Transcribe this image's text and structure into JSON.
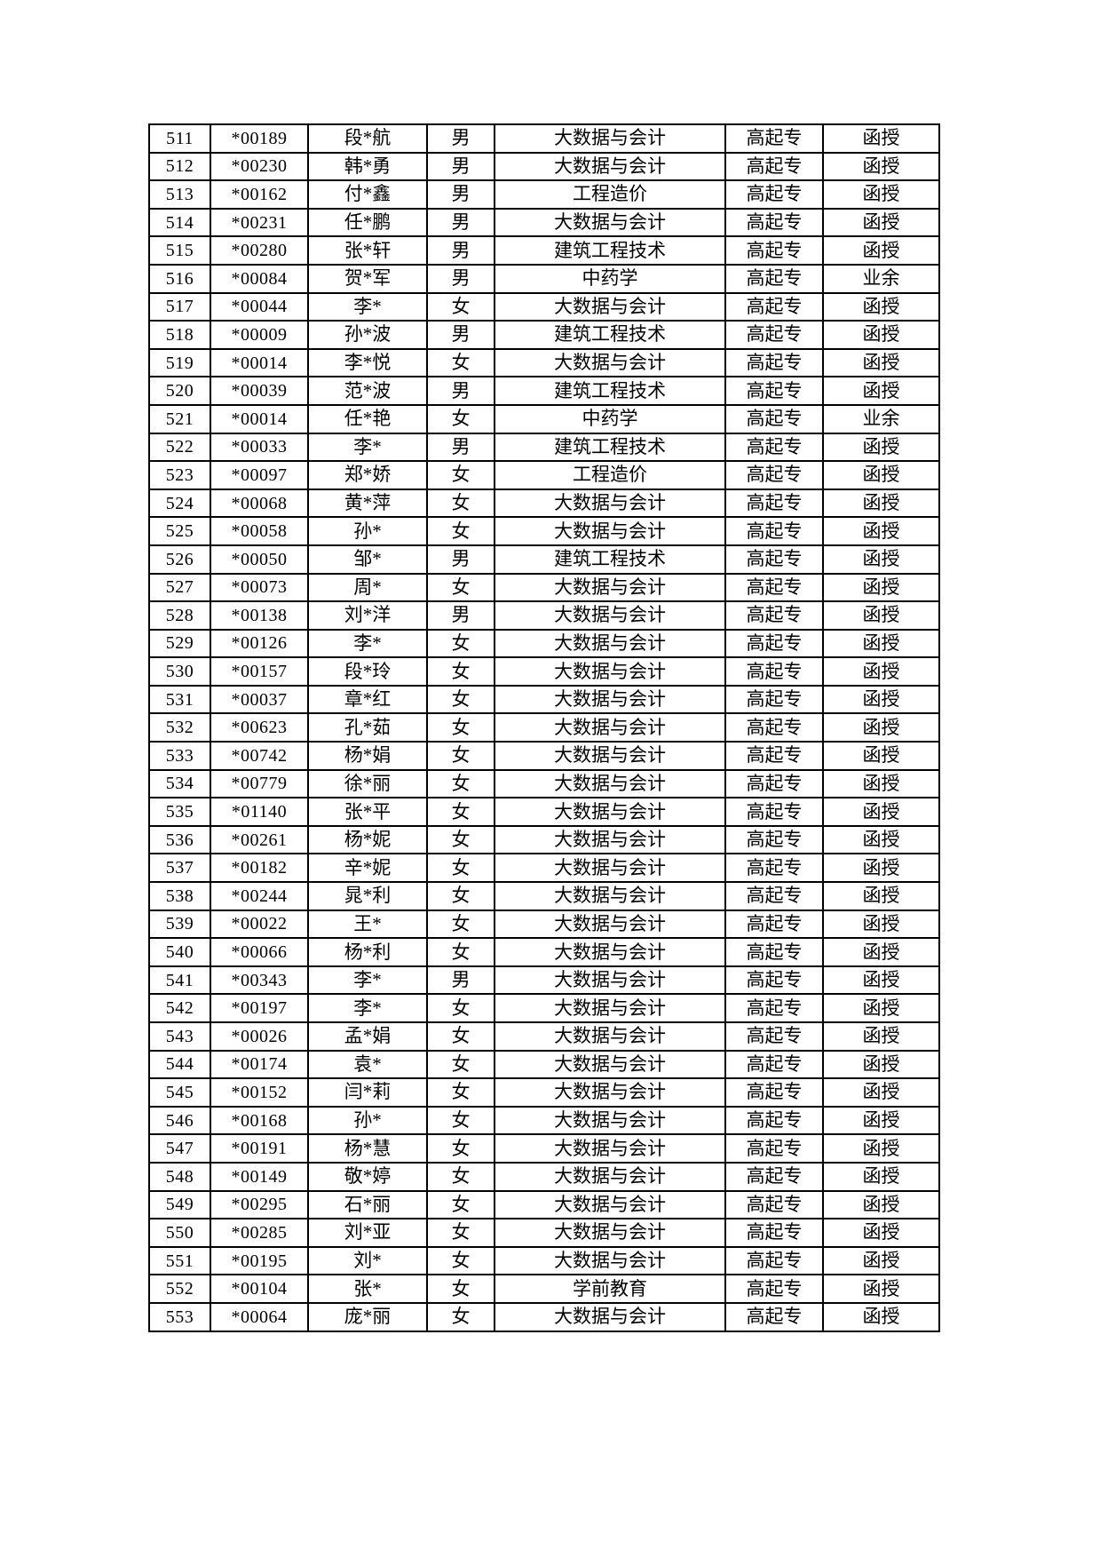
{
  "ink_color": "#000000",
  "paper_color": "#ffffff",
  "levels": {
    "gaoqizhuan": "高起专"
  },
  "forms": {
    "hanshou": "函授",
    "yeyu": "业余"
  },
  "table": {
    "rows": [
      [
        "511",
        "*00189",
        "段*航",
        "男",
        "大数据与会计",
        "高起专",
        "函授"
      ],
      [
        "512",
        "*00230",
        "韩*勇",
        "男",
        "大数据与会计",
        "高起专",
        "函授"
      ],
      [
        "513",
        "*00162",
        "付*鑫",
        "男",
        "工程造价",
        "高起专",
        "函授"
      ],
      [
        "514",
        "*00231",
        "任*鹏",
        "男",
        "大数据与会计",
        "高起专",
        "函授"
      ],
      [
        "515",
        "*00280",
        "张*轩",
        "男",
        "建筑工程技术",
        "高起专",
        "函授"
      ],
      [
        "516",
        "*00084",
        "贺*军",
        "男",
        "中药学",
        "高起专",
        "业余"
      ],
      [
        "517",
        "*00044",
        "李*",
        "女",
        "大数据与会计",
        "高起专",
        "函授"
      ],
      [
        "518",
        "*00009",
        "孙*波",
        "男",
        "建筑工程技术",
        "高起专",
        "函授"
      ],
      [
        "519",
        "*00014",
        "李*悦",
        "女",
        "大数据与会计",
        "高起专",
        "函授"
      ],
      [
        "520",
        "*00039",
        "范*波",
        "男",
        "建筑工程技术",
        "高起专",
        "函授"
      ],
      [
        "521",
        "*00014",
        "任*艳",
        "女",
        "中药学",
        "高起专",
        "业余"
      ],
      [
        "522",
        "*00033",
        "李*",
        "男",
        "建筑工程技术",
        "高起专",
        "函授"
      ],
      [
        "523",
        "*00097",
        "郑*娇",
        "女",
        "工程造价",
        "高起专",
        "函授"
      ],
      [
        "524",
        "*00068",
        "黄*萍",
        "女",
        "大数据与会计",
        "高起专",
        "函授"
      ],
      [
        "525",
        "*00058",
        "孙*",
        "女",
        "大数据与会计",
        "高起专",
        "函授"
      ],
      [
        "526",
        "*00050",
        "邹*",
        "男",
        "建筑工程技术",
        "高起专",
        "函授"
      ],
      [
        "527",
        "*00073",
        "周*",
        "女",
        "大数据与会计",
        "高起专",
        "函授"
      ],
      [
        "528",
        "*00138",
        "刘*洋",
        "男",
        "大数据与会计",
        "高起专",
        "函授"
      ],
      [
        "529",
        "*00126",
        "李*",
        "女",
        "大数据与会计",
        "高起专",
        "函授"
      ],
      [
        "530",
        "*00157",
        "段*玲",
        "女",
        "大数据与会计",
        "高起专",
        "函授"
      ],
      [
        "531",
        "*00037",
        "章*红",
        "女",
        "大数据与会计",
        "高起专",
        "函授"
      ],
      [
        "532",
        "*00623",
        "孔*茹",
        "女",
        "大数据与会计",
        "高起专",
        "函授"
      ],
      [
        "533",
        "*00742",
        "杨*娟",
        "女",
        "大数据与会计",
        "高起专",
        "函授"
      ],
      [
        "534",
        "*00779",
        "徐*丽",
        "女",
        "大数据与会计",
        "高起专",
        "函授"
      ],
      [
        "535",
        "*01140",
        "张*平",
        "女",
        "大数据与会计",
        "高起专",
        "函授"
      ],
      [
        "536",
        "*00261",
        "杨*妮",
        "女",
        "大数据与会计",
        "高起专",
        "函授"
      ],
      [
        "537",
        "*00182",
        "辛*妮",
        "女",
        "大数据与会计",
        "高起专",
        "函授"
      ],
      [
        "538",
        "*00244",
        "晁*利",
        "女",
        "大数据与会计",
        "高起专",
        "函授"
      ],
      [
        "539",
        "*00022",
        "王*",
        "女",
        "大数据与会计",
        "高起专",
        "函授"
      ],
      [
        "540",
        "*00066",
        "杨*利",
        "女",
        "大数据与会计",
        "高起专",
        "函授"
      ],
      [
        "541",
        "*00343",
        "李*",
        "男",
        "大数据与会计",
        "高起专",
        "函授"
      ],
      [
        "542",
        "*00197",
        "李*",
        "女",
        "大数据与会计",
        "高起专",
        "函授"
      ],
      [
        "543",
        "*00026",
        "孟*娟",
        "女",
        "大数据与会计",
        "高起专",
        "函授"
      ],
      [
        "544",
        "*00174",
        "袁*",
        "女",
        "大数据与会计",
        "高起专",
        "函授"
      ],
      [
        "545",
        "*00152",
        "闫*莉",
        "女",
        "大数据与会计",
        "高起专",
        "函授"
      ],
      [
        "546",
        "*00168",
        "孙*",
        "女",
        "大数据与会计",
        "高起专",
        "函授"
      ],
      [
        "547",
        "*00191",
        "杨*慧",
        "女",
        "大数据与会计",
        "高起专",
        "函授"
      ],
      [
        "548",
        "*00149",
        "敬*婷",
        "女",
        "大数据与会计",
        "高起专",
        "函授"
      ],
      [
        "549",
        "*00295",
        "石*丽",
        "女",
        "大数据与会计",
        "高起专",
        "函授"
      ],
      [
        "550",
        "*00285",
        "刘*亚",
        "女",
        "大数据与会计",
        "高起专",
        "函授"
      ],
      [
        "551",
        "*00195",
        "刘*",
        "女",
        "大数据与会计",
        "高起专",
        "函授"
      ],
      [
        "552",
        "*00104",
        "张*",
        "女",
        "学前教育",
        "高起专",
        "函授"
      ],
      [
        "553",
        "*00064",
        "庞*丽",
        "女",
        "大数据与会计",
        "高起专",
        "函授"
      ]
    ]
  }
}
